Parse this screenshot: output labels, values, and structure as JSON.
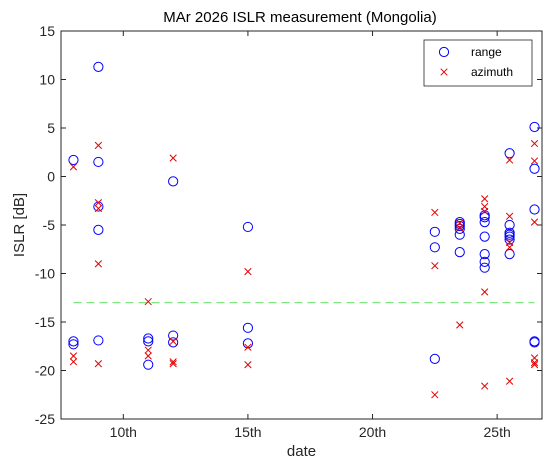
{
  "chart_data": {
    "type": "scatter",
    "title": "MAr 2026 ISLR measurement (Mongolia)",
    "xlabel": "date",
    "ylabel": "ISLR [dB]",
    "xlim": [
      7.5,
      26.8
    ],
    "ylim": [
      -25,
      15
    ],
    "xticks": [
      10,
      15,
      20,
      25
    ],
    "xtick_labels": [
      "10th",
      "15th",
      "20th",
      "25th"
    ],
    "yticks": [
      -25,
      -20,
      -15,
      -10,
      -5,
      0,
      5,
      10,
      15
    ],
    "ytick_labels": [
      "-25",
      "-20",
      "-15",
      "-10",
      "-5",
      "0",
      "5",
      "10",
      "15"
    ],
    "grid": false,
    "legend_position": "top-right",
    "reference_line": {
      "y": -13,
      "x_range": [
        8,
        26.5
      ],
      "style": "dashed",
      "color": "#80e680"
    },
    "series": [
      {
        "name": "range",
        "marker": "circle",
        "color": "#0000ff",
        "points": [
          [
            8,
            1.7
          ],
          [
            8,
            -17.0
          ],
          [
            8,
            -17.3
          ],
          [
            9,
            11.3
          ],
          [
            9,
            1.5
          ],
          [
            9,
            -3.1
          ],
          [
            9,
            -5.5
          ],
          [
            9,
            -16.9
          ],
          [
            11,
            -16.7
          ],
          [
            11,
            -17.0
          ],
          [
            11,
            -19.4
          ],
          [
            12,
            -0.5
          ],
          [
            12,
            -16.4
          ],
          [
            12,
            -17.1
          ],
          [
            15,
            -5.2
          ],
          [
            15,
            -15.6
          ],
          [
            15,
            -17.2
          ],
          [
            22.5,
            -5.7
          ],
          [
            22.5,
            -7.3
          ],
          [
            22.5,
            -18.8
          ],
          [
            23.5,
            -4.7
          ],
          [
            23.5,
            -4.9
          ],
          [
            23.5,
            -5.1
          ],
          [
            23.5,
            -5.4
          ],
          [
            23.5,
            -6.0
          ],
          [
            23.5,
            -7.8
          ],
          [
            24.5,
            -4.0
          ],
          [
            24.5,
            -4.2
          ],
          [
            24.5,
            -4.7
          ],
          [
            24.5,
            -6.2
          ],
          [
            24.5,
            -8.0
          ],
          [
            24.5,
            -8.8
          ],
          [
            24.5,
            -9.4
          ],
          [
            25.5,
            2.4
          ],
          [
            25.5,
            -5.0
          ],
          [
            25.5,
            -5.8
          ],
          [
            25.5,
            -6.0
          ],
          [
            25.5,
            -6.2
          ],
          [
            25.5,
            -6.5
          ],
          [
            25.5,
            -8.0
          ],
          [
            26.5,
            5.1
          ],
          [
            26.5,
            0.8
          ],
          [
            26.5,
            -3.4
          ],
          [
            26.5,
            -17.0
          ],
          [
            26.5,
            -17.1
          ]
        ]
      },
      {
        "name": "azimuth",
        "marker": "x",
        "color": "#e60000",
        "points": [
          [
            8,
            1.0
          ],
          [
            8,
            -18.5
          ],
          [
            8,
            -19.1
          ],
          [
            9,
            3.2
          ],
          [
            9,
            -2.7
          ],
          [
            9,
            -3.3
          ],
          [
            9,
            -9.0
          ],
          [
            9,
            -19.3
          ],
          [
            11,
            -12.9
          ],
          [
            11,
            -17.9
          ],
          [
            11,
            -18.5
          ],
          [
            12,
            1.9
          ],
          [
            12,
            -17.0
          ],
          [
            12,
            -19.1
          ],
          [
            12,
            -19.3
          ],
          [
            15,
            -9.8
          ],
          [
            15,
            -17.6
          ],
          [
            15,
            -19.4
          ],
          [
            22.5,
            -3.7
          ],
          [
            22.5,
            -9.2
          ],
          [
            22.5,
            -22.5
          ],
          [
            23.5,
            -4.8
          ],
          [
            23.5,
            -5.3
          ],
          [
            23.5,
            -15.3
          ],
          [
            24.5,
            -2.3
          ],
          [
            24.5,
            -3.1
          ],
          [
            24.5,
            -3.6
          ],
          [
            24.5,
            -11.9
          ],
          [
            24.5,
            -21.6
          ],
          [
            25.5,
            1.7
          ],
          [
            25.5,
            -4.1
          ],
          [
            25.5,
            -6.8
          ],
          [
            25.5,
            -7.3
          ],
          [
            25.5,
            -21.1
          ],
          [
            26.5,
            3.4
          ],
          [
            26.5,
            1.6
          ],
          [
            26.5,
            -4.7
          ],
          [
            26.5,
            -18.7
          ],
          [
            26.5,
            -19.2
          ],
          [
            26.5,
            -19.4
          ]
        ]
      }
    ]
  }
}
